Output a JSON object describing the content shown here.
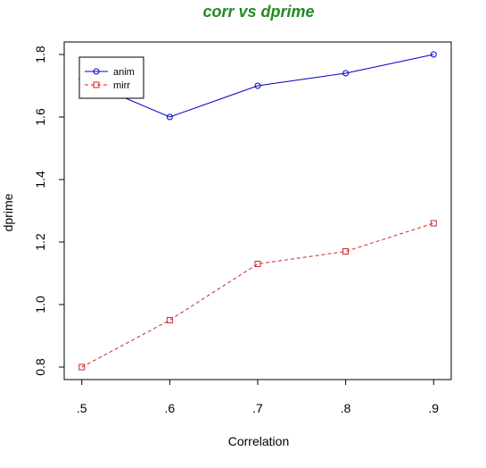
{
  "chart_data": {
    "type": "line",
    "title": "corr vs dprime",
    "xlabel": "Correlation",
    "ylabel": "dprime",
    "categories": [
      ".5",
      ".6",
      ".7",
      ".8",
      ".9"
    ],
    "x": [
      0.5,
      0.6,
      0.7,
      0.8,
      0.9
    ],
    "xlim": [
      0.48,
      0.92
    ],
    "ylim": [
      0.76,
      1.84
    ],
    "yticks": [
      0.8,
      1.0,
      1.2,
      1.4,
      1.6,
      1.8
    ],
    "ytick_labels": [
      "0.8",
      "1.0",
      "1.2",
      "1.4",
      "1.6",
      "1.8"
    ],
    "grid": false,
    "legend_position": "top-left",
    "series": [
      {
        "name": "anim",
        "values": [
          1.72,
          1.6,
          1.7,
          1.74,
          1.8
        ],
        "color": "#0000CD",
        "line": "solid",
        "marker": "circle"
      },
      {
        "name": "mirr",
        "values": [
          0.8,
          0.95,
          1.13,
          1.17,
          1.26
        ],
        "color": "#CD2626",
        "line": "dashed",
        "marker": "square"
      }
    ],
    "title_color": "#228B22"
  }
}
